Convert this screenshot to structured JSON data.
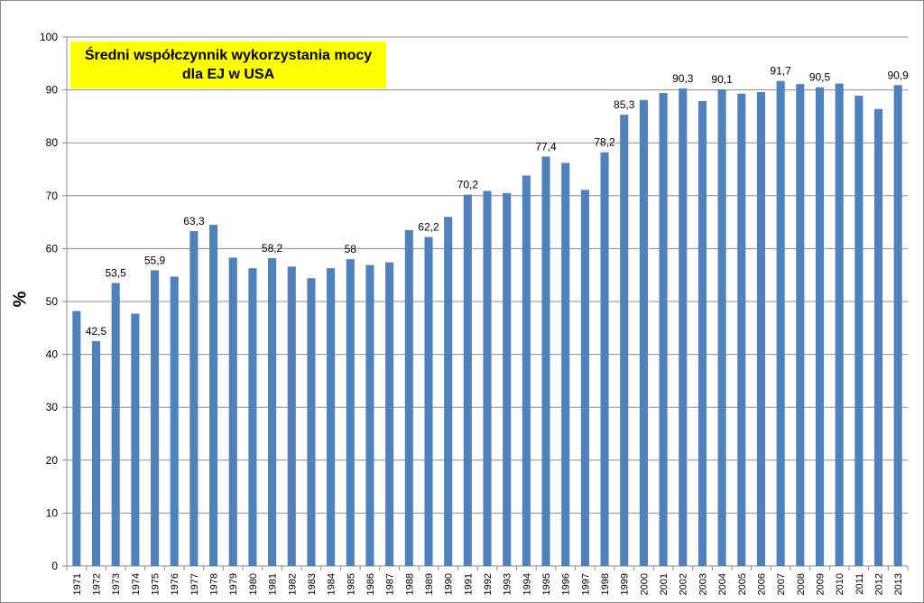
{
  "chart_data": {
    "type": "bar",
    "title": "Średni współczynnik  wykorzystania mocy dla EJ  w USA",
    "title_lines": [
      "Średni współczynnik  wykorzystania mocy",
      "dla EJ  w USA"
    ],
    "title_background": "#ffff00",
    "ylabel": "%",
    "xlabel": "",
    "ylim": [
      0,
      100
    ],
    "yticks": [
      0,
      10,
      20,
      30,
      40,
      50,
      60,
      70,
      80,
      90,
      100
    ],
    "grid": "horizontal",
    "bar_color": "#4f81bd",
    "categories": [
      "1971",
      "1972",
      "1973",
      "1974",
      "1975",
      "1976",
      "1977",
      "1978",
      "1979",
      "1980",
      "1981",
      "1982",
      "1983",
      "1984",
      "1985",
      "1986",
      "1987",
      "1988",
      "1989",
      "1990",
      "1991",
      "1992",
      "1993",
      "1994",
      "1995",
      "1996",
      "1997",
      "1998",
      "1999",
      "2000",
      "2001",
      "2002",
      "2003",
      "2004",
      "2005",
      "2006",
      "2007",
      "2008",
      "2009",
      "2010",
      "2011",
      "2012",
      "2013"
    ],
    "values": [
      48.2,
      42.5,
      53.5,
      47.7,
      55.9,
      54.7,
      63.3,
      64.5,
      58.3,
      56.3,
      58.2,
      56.6,
      54.4,
      56.3,
      58.0,
      56.9,
      57.4,
      63.5,
      62.2,
      66.0,
      70.2,
      70.9,
      70.5,
      73.8,
      77.4,
      76.2,
      71.1,
      78.2,
      85.3,
      88.1,
      89.4,
      90.3,
      87.9,
      90.1,
      89.3,
      89.6,
      91.7,
      91.1,
      90.5,
      91.2,
      88.9,
      86.4,
      90.9
    ],
    "data_labels": [
      null,
      "42,5",
      "53,5",
      null,
      "55,9",
      null,
      "63,3",
      null,
      null,
      null,
      "58,2",
      null,
      null,
      null,
      "58",
      null,
      null,
      null,
      "62,2",
      null,
      "70,2",
      null,
      null,
      null,
      "77,4",
      null,
      null,
      "78,2",
      "85,3",
      null,
      null,
      "90,3",
      null,
      "90,1",
      null,
      null,
      "91,7",
      null,
      "90,5",
      null,
      null,
      null,
      "90,9"
    ]
  }
}
